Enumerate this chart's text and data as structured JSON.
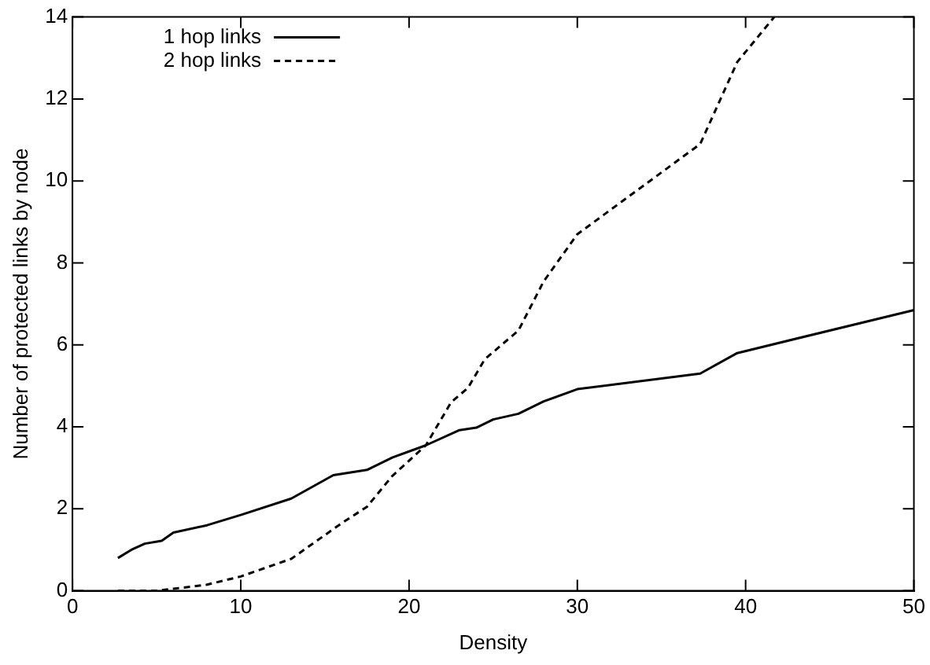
{
  "chart_data": {
    "type": "line",
    "xlabel": "Density",
    "ylabel": "Number of protected links by node",
    "xlim": [
      0,
      50
    ],
    "xticks": [
      0,
      10,
      20,
      30,
      40,
      50
    ],
    "ylim": [
      0,
      14
    ],
    "yticks": [
      0,
      2,
      4,
      6,
      8,
      10,
      12,
      14
    ],
    "legend": "top left",
    "marker": "none",
    "series": [
      {
        "name": "1 hop links",
        "color": "#000000",
        "line_style": "solid",
        "x": [
          2.7,
          3.5,
          4.3,
          5.3,
          6,
          8,
          10,
          13,
          15.5,
          17.5,
          19,
          21,
          23,
          24,
          25,
          26.5,
          28,
          30,
          37.3,
          39.5,
          50
        ],
        "values": [
          0.8,
          1.0,
          1.15,
          1.22,
          1.42,
          1.6,
          1.85,
          2.25,
          2.82,
          2.95,
          3.25,
          3.55,
          3.92,
          3.98,
          4.18,
          4.32,
          4.62,
          4.92,
          5.3,
          5.8,
          6.85
        ]
      },
      {
        "name": "2 hop links",
        "color": "#000000",
        "line_style": "dashed",
        "x": [
          2.7,
          5,
          6,
          8,
          10,
          13,
          16,
          17.5,
          19,
          21,
          22.5,
          23.5,
          24.5,
          26.5,
          28,
          30,
          37.3,
          39.5,
          41.7
        ],
        "values": [
          0,
          0,
          0.05,
          0.15,
          0.35,
          0.78,
          1.65,
          2.05,
          2.8,
          3.55,
          4.6,
          4.95,
          5.65,
          6.35,
          7.55,
          8.7,
          10.9,
          12.9,
          14
        ]
      }
    ]
  }
}
